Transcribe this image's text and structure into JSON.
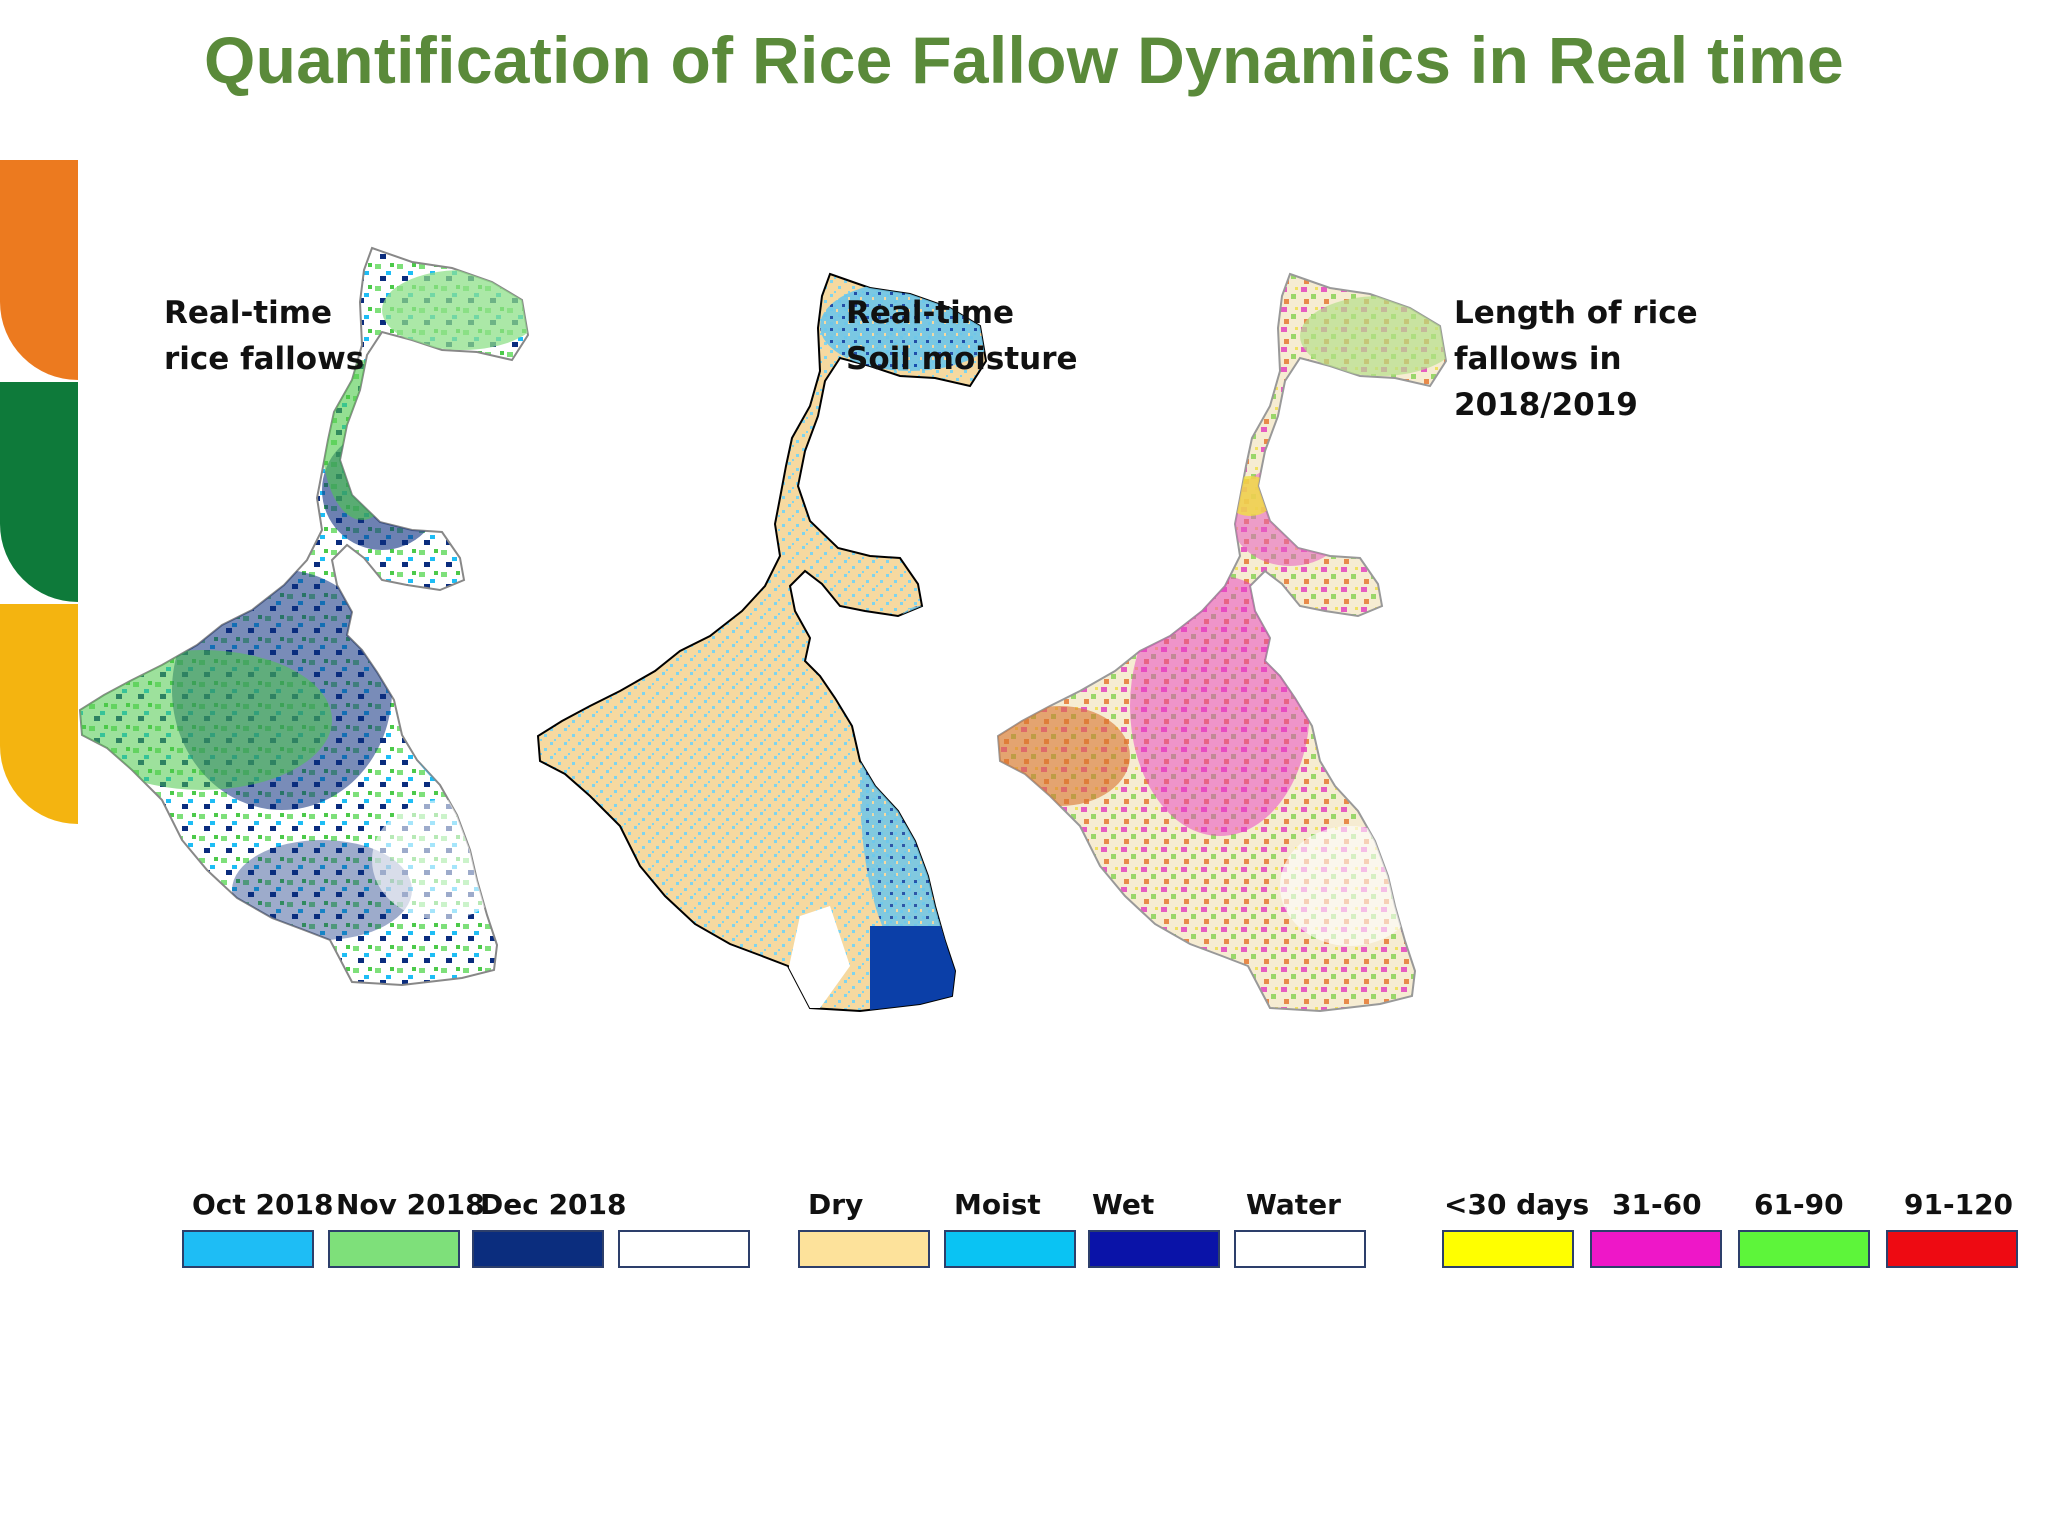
{
  "title": "Quantification of Rice Fallow Dynamics in Real time",
  "brand_colors": [
    "#ec7a1f",
    "#0e7a3a",
    "#f4b410"
  ],
  "panels": [
    {
      "label_lines": [
        "Real-time",
        "rice fallows"
      ],
      "legend": [
        {
          "label": "Oct 2018",
          "color": "#1ebdf5"
        },
        {
          "label": "Nov 2018",
          "color": "#7ee07a"
        },
        {
          "label": "Dec 2018",
          "color": "#0b2d7e"
        },
        {
          "label": "",
          "color": "#ffffff"
        }
      ]
    },
    {
      "label_lines": [
        "Real-time",
        "Soil moisture"
      ],
      "legend": [
        {
          "label": "Dry",
          "color": "#fde29b"
        },
        {
          "label": "Moist",
          "color": "#0ac3f3"
        },
        {
          "label": "Wet",
          "color": "#0a13a8"
        },
        {
          "label": "Water",
          "color": "#ffffff"
        }
      ]
    },
    {
      "label_lines": [
        "Length of rice",
        "fallows  in",
        "2018/2019"
      ],
      "legend": [
        {
          "label": "<30 days",
          "color": "#ffff00"
        },
        {
          "label": "31-60",
          "color": "#ee17c8"
        },
        {
          "label": "61-90",
          "color": "#5df53a"
        },
        {
          "label": "91-120",
          "color": "#ee0a12"
        }
      ]
    }
  ]
}
